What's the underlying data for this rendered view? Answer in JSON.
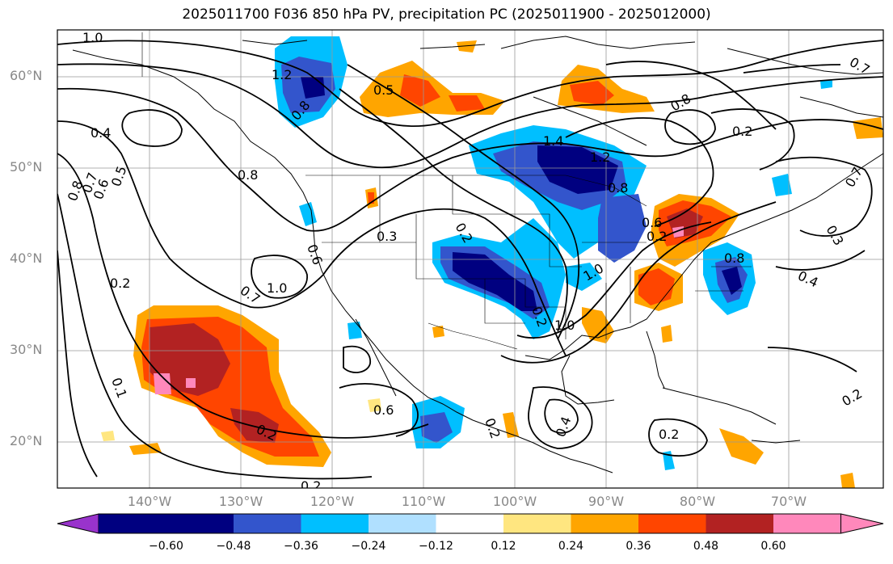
{
  "title": "2025011700 F036 850 hPa PV, precipitation PC (2025011900 - 2025012000)",
  "map": {
    "lat_labels": [
      "60°N",
      "50°N",
      "40°N",
      "30°N",
      "20°N"
    ],
    "lon_labels": [
      "140°W",
      "130°W",
      "120°W",
      "110°W",
      "100°W",
      "90°W",
      "80°W",
      "70°W"
    ],
    "contour_labels": [
      "1.0",
      "1.2",
      "0.8",
      "0.5",
      "0.4",
      "0.8",
      "0.7",
      "0.6",
      "0.5",
      "0.8",
      "0.2",
      "0.7",
      "1.0",
      "0.6",
      "0.3",
      "0.2",
      "1.4",
      "1.2",
      "0.8",
      "0.6",
      "0.2",
      "0.2",
      "1.0",
      "0.8",
      "0.4",
      "0.7",
      "0.2",
      "0.6",
      "0.2",
      "0.4",
      "0.2",
      "0.2",
      "0.2",
      "0.2",
      "0.1",
      "1.0",
      "0.8",
      "0.7",
      "0.3"
    ]
  },
  "colorbar": {
    "ticks": [
      "−0.60",
      "−0.48",
      "−0.36",
      "−0.24",
      "−0.12",
      "0.12",
      "0.24",
      "0.36",
      "0.48",
      "0.60"
    ],
    "colors": [
      "#9933cc",
      "#000080",
      "#3355cc",
      "#00bfff",
      "#b0e0ff",
      "#ffffff",
      "#ffe680",
      "#ffa500",
      "#ff4500",
      "#b22222",
      "#ff88bb"
    ]
  }
}
